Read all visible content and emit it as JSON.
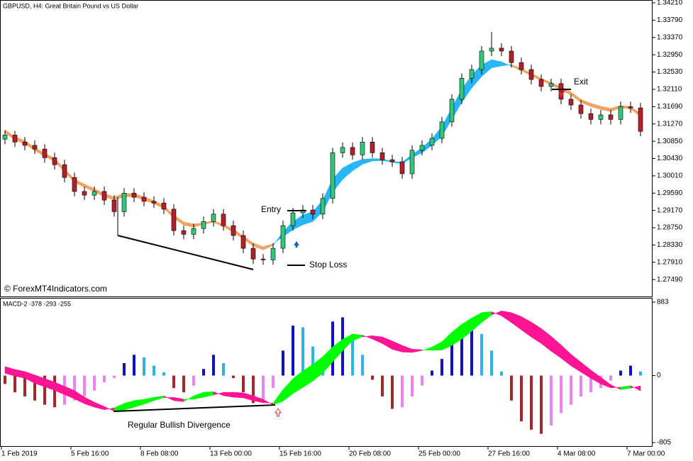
{
  "chart_data": [
    {
      "type": "candlestick",
      "title": "GBPUSD, H4:  Great Britain Pound vs US Dollar",
      "watermark": "© ForexMT4Indicators.com",
      "annotations": {
        "entry": "Entry",
        "stop_loss": "Stop Loss",
        "exit": "Exit"
      },
      "categories": [
        "1 Feb 2019",
        null,
        null,
        null,
        null,
        null,
        null,
        "5 Feb 16:00",
        null,
        null,
        null,
        null,
        null,
        null,
        "8 Feb 08:00",
        null,
        null,
        null,
        null,
        null,
        null,
        "13 Feb 00:00",
        null,
        null,
        null,
        null,
        null,
        null,
        "15 Feb 16:00",
        null,
        null,
        null,
        null,
        null,
        null,
        "20 Feb 08:00",
        null,
        null,
        null,
        null,
        null,
        null,
        "25 Feb 00:00",
        null,
        null,
        null,
        null,
        null,
        null,
        "27 Feb 16:00",
        null,
        null,
        null,
        null,
        null,
        null,
        "4 Mar 08:00",
        null,
        null,
        null,
        null,
        null,
        null,
        "7 Mar 00:00",
        null
      ],
      "open": [
        1.309,
        1.31,
        1.3083,
        1.3075,
        1.3066,
        1.3045,
        1.3028,
        1.2997,
        1.2963,
        1.2954,
        1.2963,
        1.2942,
        1.2914,
        1.2959,
        1.2949,
        1.2939,
        1.2935,
        1.292,
        1.2868,
        1.2859,
        1.2873,
        1.289,
        1.2908,
        1.288,
        1.2856,
        1.2825,
        1.2799,
        1.2797,
        1.2825,
        1.288,
        1.2911,
        1.2918,
        1.2908,
        1.2946,
        1.3057,
        1.307,
        1.3052,
        1.3083,
        1.3057,
        1.304,
        1.3035,
        1.3006,
        1.3063,
        1.3075,
        1.3092,
        1.3132,
        1.3187,
        1.3238,
        1.3259,
        1.3304,
        1.3311,
        1.3304,
        1.3276,
        1.3259,
        1.3235,
        1.3218,
        1.3225,
        1.3187,
        1.3173,
        1.3152,
        1.3138,
        1.3149,
        1.3138,
        1.3169,
        1.3166
      ],
      "high": [
        1.3112,
        1.311,
        1.3095,
        1.3087,
        1.3078,
        1.3057,
        1.304,
        1.3009,
        1.2975,
        1.2975,
        1.2975,
        1.2954,
        1.2971,
        1.2971,
        1.2961,
        1.2951,
        1.2947,
        1.2932,
        1.288,
        1.2885,
        1.2902,
        1.292,
        1.292,
        1.2892,
        1.2868,
        1.2837,
        1.2811,
        1.2837,
        1.2892,
        1.2923,
        1.293,
        1.293,
        1.2958,
        1.3069,
        1.3082,
        1.3082,
        1.3095,
        1.3095,
        1.3069,
        1.3052,
        1.3047,
        1.3075,
        1.3087,
        1.3104,
        1.3144,
        1.3199,
        1.325,
        1.3271,
        1.3316,
        1.335,
        1.3323,
        1.3316,
        1.3288,
        1.3271,
        1.3247,
        1.3237,
        1.3237,
        1.3199,
        1.3185,
        1.3164,
        1.3161,
        1.3161,
        1.3181,
        1.3181,
        1.3178
      ],
      "low": [
        1.3078,
        1.3071,
        1.3063,
        1.3054,
        1.3033,
        1.3016,
        1.2985,
        1.2951,
        1.2942,
        1.2942,
        1.293,
        1.2902,
        1.2902,
        1.2937,
        1.2927,
        1.2923,
        1.2908,
        1.2856,
        1.2847,
        1.2847,
        1.2861,
        1.2878,
        1.2868,
        1.2844,
        1.2813,
        1.2787,
        1.2785,
        1.2785,
        1.2813,
        1.2868,
        1.2899,
        1.2896,
        1.2896,
        1.2934,
        1.3045,
        1.304,
        1.304,
        1.3045,
        1.3028,
        1.3023,
        1.2994,
        1.2994,
        1.3051,
        1.3063,
        1.308,
        1.312,
        1.3175,
        1.3226,
        1.3247,
        1.3292,
        1.3292,
        1.3264,
        1.3247,
        1.3223,
        1.3206,
        1.3206,
        1.3175,
        1.3161,
        1.314,
        1.3126,
        1.3126,
        1.3126,
        1.3126,
        1.3154,
        1.3097
      ],
      "close": [
        1.31,
        1.3083,
        1.3075,
        1.3066,
        1.3045,
        1.3028,
        1.2997,
        1.2963,
        1.2954,
        1.2963,
        1.2942,
        1.2914,
        1.2959,
        1.2949,
        1.2939,
        1.2935,
        1.292,
        1.2868,
        1.2859,
        1.2873,
        1.289,
        1.2908,
        1.288,
        1.2856,
        1.2825,
        1.2799,
        1.2797,
        1.2825,
        1.288,
        1.2911,
        1.2918,
        1.2908,
        1.2946,
        1.3057,
        1.307,
        1.3052,
        1.3083,
        1.3057,
        1.304,
        1.3035,
        1.3006,
        1.3063,
        1.3075,
        1.3092,
        1.3132,
        1.3187,
        1.3238,
        1.3259,
        1.3304,
        1.3311,
        1.3304,
        1.3276,
        1.3259,
        1.3235,
        1.3218,
        1.3225,
        1.3187,
        1.3173,
        1.3152,
        1.3138,
        1.3149,
        1.3138,
        1.3169,
        1.3166,
        1.3109
      ],
      "colors": {
        "up": "#34c77b",
        "down": "#b3202a",
        "wick": "#000000"
      },
      "band": {
        "color_up": "#29b6f6",
        "color_down": "#f0a466",
        "fast": [
          1.3105,
          1.3088,
          1.3079,
          1.3062,
          1.3048,
          1.3036,
          1.301,
          1.2985,
          1.2973,
          1.2962,
          1.295,
          1.2942,
          1.295,
          1.295,
          1.2942,
          1.2933,
          1.2921,
          1.2898,
          1.2881,
          1.2876,
          1.2883,
          1.2888,
          1.2877,
          1.2864,
          1.2847,
          1.283,
          1.2821,
          1.2832,
          1.2865,
          1.289,
          1.2906,
          1.2914,
          1.2942,
          1.2993,
          1.302,
          1.3033,
          1.3041,
          1.3043,
          1.3042,
          1.3036,
          1.3034,
          1.3053,
          1.3069,
          1.3091,
          1.3121,
          1.3166,
          1.3211,
          1.3246,
          1.327,
          1.3283,
          1.3278,
          1.3267,
          1.3256,
          1.3244,
          1.3232,
          1.3222,
          1.3209,
          1.3197,
          1.3179,
          1.3169,
          1.3162,
          1.3157,
          1.3166,
          1.3163,
          1.3145
        ],
        "slow": [
          1.3113,
          1.3096,
          1.3087,
          1.307,
          1.3056,
          1.3044,
          1.3018,
          1.2993,
          1.2981,
          1.297,
          1.2958,
          1.295,
          1.2958,
          1.2958,
          1.295,
          1.2941,
          1.2929,
          1.2906,
          1.2889,
          1.2884,
          1.2887,
          1.2892,
          1.2883,
          1.2872,
          1.2855,
          1.2838,
          1.2829,
          1.2836,
          1.2853,
          1.287,
          1.2882,
          1.289,
          1.2914,
          1.2961,
          1.2992,
          1.3013,
          1.3029,
          1.3037,
          1.3038,
          1.3034,
          1.303,
          1.3045,
          1.3057,
          1.3075,
          1.3097,
          1.3138,
          1.3179,
          1.3214,
          1.3242,
          1.3263,
          1.3268,
          1.3271,
          1.3262,
          1.325,
          1.3238,
          1.3228,
          1.3217,
          1.3205,
          1.3187,
          1.3177,
          1.317,
          1.3165,
          1.3172,
          1.3169,
          1.3153
        ]
      },
      "ylim": [
        1.2708,
        1.3428
      ],
      "yticks": [
        {
          "value": 1.3421,
          "label": "1.34210"
        },
        {
          "value": 1.3379,
          "label": "1.33790"
        },
        {
          "value": 1.3337,
          "label": "1.33370"
        },
        {
          "value": 1.3295,
          "label": "1.32950"
        },
        {
          "value": 1.3253,
          "label": "1.32530"
        },
        {
          "value": 1.3211,
          "label": "1.32110"
        },
        {
          "value": 1.3169,
          "label": "1.31690"
        },
        {
          "value": 1.3127,
          "label": "1.31270"
        },
        {
          "value": 1.3085,
          "label": "1.30850"
        },
        {
          "value": 1.3043,
          "label": "1.30430"
        },
        {
          "value": 1.3001,
          "label": "1.30010"
        },
        {
          "value": 1.2959,
          "label": "1.29590"
        },
        {
          "value": 1.2917,
          "label": "1.29170"
        },
        {
          "value": 1.2875,
          "label": "1.28750"
        },
        {
          "value": 1.2833,
          "label": "1.28330"
        },
        {
          "value": 1.2791,
          "label": "1.27910"
        },
        {
          "value": 1.2749,
          "label": "1.27490"
        }
      ]
    },
    {
      "type": "macd",
      "title": "MACD-2 -378 -293 -255",
      "annotation": "Regular Bullish Divergence",
      "histogram": {
        "color_pos_rising": "#1010c8",
        "color_pos_falling": "#2bb4e8",
        "color_neg_falling": "#a3282c",
        "color_neg_rising": "#ee82ee",
        "values": [
          -100,
          -200,
          -250,
          -300,
          -350,
          -380,
          -350,
          -300,
          -250,
          -180,
          -80,
          -30,
          150,
          250,
          220,
          120,
          40,
          -150,
          -200,
          -120,
          80,
          250,
          150,
          -30,
          -200,
          -330,
          -300,
          -150,
          300,
          600,
          580,
          350,
          200,
          650,
          700,
          500,
          250,
          -50,
          -250,
          -400,
          -380,
          -250,
          -120,
          60,
          200,
          400,
          550,
          600,
          500,
          300,
          50,
          -300,
          -550,
          -650,
          -700,
          -600,
          -450,
          -350,
          -250,
          -200,
          -150,
          -60,
          60,
          120,
          50
        ]
      },
      "lines": {
        "color_up": "#00ff00",
        "color_down": "#ff1493",
        "fast": [
          28,
          -6,
          -31,
          -93,
          -135,
          -178,
          -229,
          -280,
          -338,
          -379,
          -411,
          -388,
          -334,
          -300,
          -285,
          -261,
          -245,
          -301,
          -313,
          -244,
          -200,
          -193,
          -241,
          -260,
          -268,
          -302,
          -326,
          -330,
          -168,
          -38,
          57,
          134,
          228,
          345,
          436,
          499,
          486,
          439,
          385,
          316,
          283,
          278,
          301,
          343,
          407,
          522,
          617,
          692,
          757,
          768,
          718,
          637,
          549,
          463,
          386,
          293,
          209,
          117,
          42,
          -33,
          -100,
          -148,
          -138,
          -121,
          -183
        ],
        "slow": [
          108,
          74,
          49,
          7,
          -35,
          -78,
          -129,
          -180,
          -258,
          -319,
          -371,
          -428,
          -414,
          -380,
          -345,
          -301,
          -265,
          -261,
          -283,
          -284,
          -260,
          -233,
          -201,
          -200,
          -208,
          -242,
          -286,
          -350,
          -308,
          -218,
          -143,
          -66,
          28,
          165,
          296,
          419,
          466,
          479,
          465,
          416,
          363,
          318,
          311,
          303,
          307,
          362,
          437,
          532,
          637,
          728,
          778,
          757,
          709,
          643,
          566,
          473,
          369,
          257,
          162,
          67,
          -20,
          -108,
          -168,
          -151,
          -123
        ]
      },
      "ylim": [
        -856,
        934
      ],
      "yticks": [
        883,
        0,
        -805
      ]
    }
  ]
}
